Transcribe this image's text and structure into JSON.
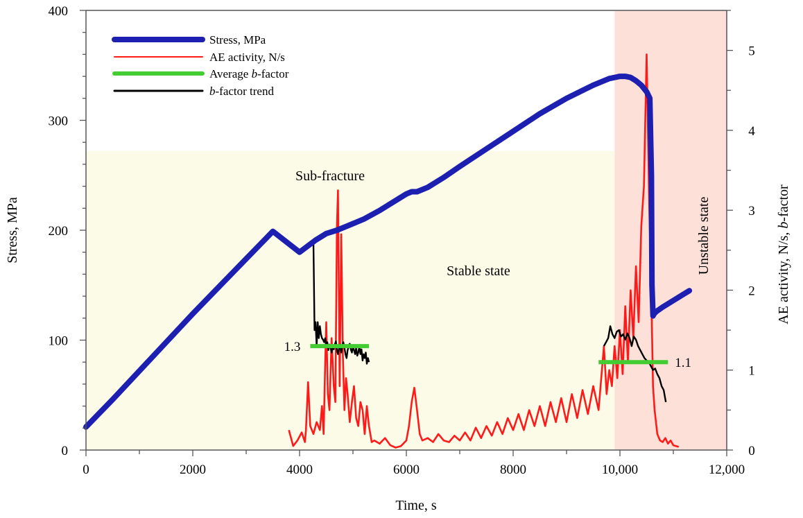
{
  "chart_data": {
    "type": "line",
    "title": "",
    "xlabel": "Time, s",
    "ylabel_left": "Stress, MPa",
    "ylabel_right_parts": [
      "AE activity, N/s, ",
      "b",
      "-factor"
    ],
    "xlim": [
      0,
      12000
    ],
    "ylim_left": [
      0,
      400
    ],
    "ylim_right": [
      0,
      5.5
    ],
    "x_ticks": [
      0,
      2000,
      4000,
      6000,
      8000,
      10000,
      12000
    ],
    "x_tick_labels": [
      "0",
      "2000",
      "4000",
      "6000",
      "8000",
      "10,000",
      "12,000"
    ],
    "y_left_ticks": [
      0,
      100,
      200,
      300,
      400
    ],
    "y_left_tick_labels": [
      "0",
      "100",
      "200",
      "300",
      "400"
    ],
    "y_right_ticks": [
      0,
      1,
      2,
      3,
      4,
      5
    ],
    "y_right_tick_labels": [
      "0",
      "1",
      "2",
      "3",
      "4",
      "5"
    ],
    "regions": [
      {
        "name": "stable",
        "x_start": 0,
        "x_end": 9900,
        "y_top_left": 272,
        "color": "#fbfbe8"
      },
      {
        "name": "unstable",
        "x_start": 9900,
        "x_end": 12000,
        "color": "#fde0d8"
      }
    ],
    "legend": [
      {
        "key": "stress",
        "label_parts": [
          "Stress, MPa"
        ],
        "italic_index": -1,
        "color": "#1d1fb0"
      },
      {
        "key": "ae",
        "label_parts": [
          "AE activity, N/s"
        ],
        "italic_index": -1,
        "color": "#ff1a1a"
      },
      {
        "key": "avg_b",
        "label_parts": [
          "Average ",
          "b",
          "-factor"
        ],
        "italic_index": 1,
        "color": "#44cc33"
      },
      {
        "key": "b_trend",
        "label_parts": [
          "b",
          "-factor trend"
        ],
        "italic_index": 0,
        "color": "#000000"
      }
    ],
    "annotations": {
      "sub_fracture": "Sub-fracture",
      "stable_state": "Stable state",
      "unstable_state": "Unstable state",
      "avg_b_left_label": "1.3",
      "avg_b_right_label": "1.1"
    },
    "series": [
      {
        "name": "Stress, MPa",
        "axis": "left",
        "color": "#1d1fb0",
        "x": [
          0,
          500,
          1000,
          1500,
          2000,
          2500,
          3000,
          3500,
          4000,
          4300,
          4500,
          4700,
          4900,
          5200,
          5500,
          5800,
          6000,
          6100,
          6200,
          6400,
          6700,
          7000,
          7500,
          8000,
          8500,
          9000,
          9500,
          9800,
          10000,
          10100,
          10200,
          10300,
          10400,
          10500,
          10560,
          10590,
          10600,
          10620,
          10640,
          10680,
          10800,
          11000,
          11200,
          11300
        ],
        "y": [
          21,
          46,
          72,
          98,
          124,
          149,
          174,
          199,
          180,
          191,
          197,
          200,
          204,
          210,
          218,
          227,
          233,
          235,
          235,
          239,
          248,
          258,
          274,
          290,
          306,
          320,
          332,
          338,
          340,
          340,
          339,
          336,
          332,
          326,
          320,
          250,
          150,
          122,
          124,
          126,
          130,
          136,
          142,
          145
        ]
      },
      {
        "name": "AE activity, N/s",
        "axis": "right",
        "color": "#ff1a1a",
        "x": [
          3800,
          3880,
          3960,
          4040,
          4100,
          4120,
          4160,
          4200,
          4260,
          4320,
          4380,
          4420,
          4450,
          4480,
          4500,
          4530,
          4560,
          4600,
          4640,
          4670,
          4700,
          4720,
          4750,
          4780,
          4810,
          4840,
          4870,
          4900,
          4940,
          4980,
          5020,
          5060,
          5100,
          5140,
          5180,
          5220,
          5260,
          5300,
          5350,
          5400,
          5500,
          5600,
          5700,
          5800,
          5900,
          6000,
          6050,
          6100,
          6150,
          6200,
          6250,
          6300,
          6400,
          6500,
          6600,
          6700,
          6800,
          6900,
          7000,
          7100,
          7200,
          7300,
          7400,
          7500,
          7600,
          7700,
          7800,
          7900,
          8000,
          8100,
          8200,
          8300,
          8400,
          8500,
          8600,
          8700,
          8800,
          8900,
          9000,
          9100,
          9200,
          9300,
          9400,
          9500,
          9600,
          9700,
          9750,
          9800,
          9850,
          9900,
          9950,
          10000,
          10050,
          10100,
          10150,
          10200,
          10250,
          10300,
          10350,
          10400,
          10450,
          10500,
          10550,
          10580,
          10600,
          10620,
          10650,
          10700,
          10750,
          10800,
          10850,
          10900,
          10950,
          11000,
          11050,
          11100
        ],
        "y": [
          0.25,
          0.05,
          0.12,
          0.22,
          0.1,
          0.25,
          0.85,
          0.3,
          0.2,
          0.35,
          0.25,
          0.55,
          0.2,
          1.1,
          1.6,
          0.7,
          0.5,
          1.4,
          0.8,
          0.6,
          2.8,
          3.25,
          0.8,
          2.7,
          1.2,
          0.5,
          0.9,
          0.7,
          0.35,
          0.6,
          0.8,
          0.4,
          0.3,
          0.6,
          0.5,
          0.2,
          0.55,
          0.3,
          0.1,
          0.12,
          0.08,
          0.15,
          0.06,
          0.03,
          0.05,
          0.12,
          0.3,
          0.6,
          0.78,
          0.5,
          0.2,
          0.12,
          0.15,
          0.1,
          0.2,
          0.12,
          0.1,
          0.18,
          0.12,
          0.22,
          0.12,
          0.28,
          0.15,
          0.3,
          0.18,
          0.35,
          0.2,
          0.4,
          0.25,
          0.45,
          0.25,
          0.5,
          0.3,
          0.55,
          0.3,
          0.6,
          0.35,
          0.65,
          0.35,
          0.7,
          0.4,
          0.75,
          0.45,
          0.8,
          0.5,
          1.3,
          0.7,
          1.0,
          0.8,
          1.3,
          0.9,
          1.5,
          0.95,
          1.8,
          1.1,
          2.0,
          1.4,
          2.3,
          1.6,
          2.8,
          3.3,
          4.95,
          3.0,
          2.2,
          1.5,
          0.8,
          0.5,
          0.2,
          0.12,
          0.1,
          0.15,
          0.08,
          0.12,
          0.06,
          0.05,
          0.04
        ]
      },
      {
        "name": "b-factor trend (left)",
        "axis": "right",
        "color": "#000000",
        "x": [
          4260,
          4280,
          4300,
          4320,
          4340,
          4360,
          4380,
          4400,
          4420,
          4440,
          4460,
          4480,
          4500,
          4520,
          4540,
          4560,
          4580,
          4600,
          4620,
          4640,
          4660,
          4680,
          4700,
          4720,
          4740,
          4760,
          4780,
          4800,
          4820,
          4840,
          4860,
          4880,
          4900,
          4920,
          4940,
          4960,
          4980,
          5000,
          5020,
          5040,
          5060,
          5080,
          5100,
          5120,
          5140,
          5160,
          5180,
          5200,
          5220,
          5240,
          5260,
          5280,
          5300
        ],
        "y": [
          2.6,
          1.5,
          1.6,
          1.3,
          1.6,
          1.4,
          1.55,
          1.45,
          1.4,
          1.38,
          1.35,
          1.4,
          1.3,
          1.35,
          1.25,
          1.32,
          1.28,
          1.22,
          1.3,
          1.26,
          1.32,
          1.36,
          1.25,
          1.2,
          1.28,
          1.32,
          1.22,
          1.3,
          1.35,
          1.28,
          1.2,
          1.15,
          1.25,
          1.3,
          1.33,
          1.26,
          1.22,
          1.3,
          1.25,
          1.2,
          1.28,
          1.18,
          1.22,
          1.3,
          1.2,
          1.26,
          1.12,
          1.2,
          1.15,
          1.22,
          1.08,
          1.15,
          1.1
        ]
      },
      {
        "name": "b-factor trend (right)",
        "axis": "right",
        "color": "#000000",
        "x": [
          9700,
          9740,
          9780,
          9820,
          9860,
          9900,
          9940,
          9980,
          10020,
          10060,
          10100,
          10140,
          10180,
          10220,
          10260,
          10300,
          10340,
          10380,
          10420,
          10460,
          10500,
          10540,
          10580,
          10620,
          10660,
          10700,
          10740,
          10780,
          10820,
          10860
        ],
        "y": [
          1.3,
          1.35,
          1.4,
          1.55,
          1.45,
          1.4,
          1.48,
          1.5,
          1.42,
          1.45,
          1.38,
          1.46,
          1.4,
          1.3,
          1.42,
          1.38,
          1.3,
          1.25,
          1.2,
          1.15,
          1.12,
          1.1,
          1.05,
          1.0,
          1.02,
          0.95,
          0.9,
          0.8,
          0.75,
          0.6
        ]
      },
      {
        "name": "Average b-factor (left)",
        "axis": "right",
        "color": "#44cc33",
        "x": [
          4200,
          5300
        ],
        "y": [
          1.3,
          1.3
        ],
        "value_label": "1.3"
      },
      {
        "name": "Average b-factor (right)",
        "axis": "right",
        "color": "#44cc33",
        "x": [
          9600,
          10900
        ],
        "y": [
          1.1,
          1.1
        ],
        "value_label": "1.1"
      }
    ]
  }
}
